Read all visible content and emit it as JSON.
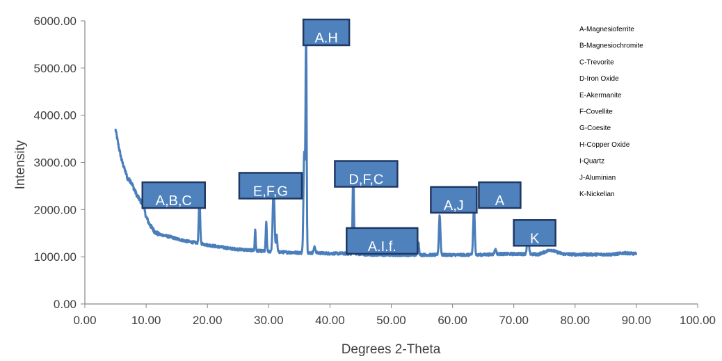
{
  "chart_data": {
    "type": "line",
    "xlabel": "Degrees 2-Theta",
    "ylabel": "Intensity",
    "xlim": [
      0,
      100
    ],
    "ylim": [
      0,
      6000
    ],
    "x_ticks": [
      "0.00",
      "10.00",
      "20.00",
      "30.00",
      "40.00",
      "50.00",
      "60.00",
      "70.00",
      "80.00",
      "90.00",
      "100.00"
    ],
    "y_ticks": [
      "0.00",
      "1000.00",
      "2000.00",
      "3000.00",
      "4000.00",
      "5000.00",
      "6000.00"
    ],
    "grid": false,
    "legend_position": "top-right",
    "line_color": "#4a7ebb",
    "box_fill": "#4f81bd",
    "box_border": "#1f3864",
    "baseline": [
      [
        5,
        3700
      ],
      [
        5.5,
        3350
      ],
      [
        6,
        3050
      ],
      [
        6.5,
        2850
      ],
      [
        7,
        2650
      ],
      [
        7.5,
        2600
      ],
      [
        8,
        2450
      ],
      [
        8.5,
        2300
      ],
      [
        9,
        2200
      ],
      [
        9.5,
        2100
      ],
      [
        10,
        1850
      ],
      [
        10.5,
        1700
      ],
      [
        11,
        1600
      ],
      [
        11.5,
        1520
      ],
      [
        12,
        1480
      ],
      [
        13,
        1450
      ],
      [
        14,
        1420
      ],
      [
        15,
        1380
      ],
      [
        16,
        1350
      ],
      [
        17,
        1320
      ],
      [
        18,
        1300
      ],
      [
        19,
        1280
      ],
      [
        20,
        1250
      ],
      [
        21,
        1230
      ],
      [
        22,
        1210
      ],
      [
        23,
        1190
      ],
      [
        24,
        1170
      ],
      [
        25,
        1160
      ],
      [
        26,
        1150
      ],
      [
        27,
        1140
      ],
      [
        28,
        1130
      ],
      [
        29,
        1120
      ],
      [
        30,
        1110
      ],
      [
        32,
        1100
      ],
      [
        34,
        1090
      ],
      [
        36,
        1080
      ],
      [
        38,
        1080
      ],
      [
        40,
        1070
      ],
      [
        42,
        1070
      ],
      [
        44,
        1060
      ],
      [
        46,
        1050
      ],
      [
        48,
        1040
      ],
      [
        50,
        1040
      ],
      [
        52,
        1040
      ],
      [
        54,
        1040
      ],
      [
        56,
        1040
      ],
      [
        58,
        1040
      ],
      [
        60,
        1040
      ],
      [
        62,
        1040
      ],
      [
        64,
        1040
      ],
      [
        66,
        1050
      ],
      [
        68,
        1060
      ],
      [
        70,
        1060
      ],
      [
        72,
        1060
      ],
      [
        74,
        1050
      ],
      [
        76,
        1150
      ],
      [
        77,
        1100
      ],
      [
        78,
        1060
      ],
      [
        80,
        1050
      ],
      [
        82,
        1050
      ],
      [
        84,
        1050
      ],
      [
        86,
        1050
      ],
      [
        88,
        1080
      ],
      [
        90,
        1060
      ]
    ],
    "peaks": [
      {
        "x": 18.7,
        "y": 2280,
        "w": 0.22
      },
      {
        "x": 27.8,
        "y": 1580,
        "w": 0.15
      },
      {
        "x": 29.6,
        "y": 1720,
        "w": 0.18
      },
      {
        "x": 30.8,
        "y": 2400,
        "w": 0.3
      },
      {
        "x": 31.3,
        "y": 1450,
        "w": 0.2
      },
      {
        "x": 35.8,
        "y": 3200,
        "w": 0.25
      },
      {
        "x": 36.1,
        "y": 5750,
        "w": 0.18
      },
      {
        "x": 37.5,
        "y": 1200,
        "w": 0.3
      },
      {
        "x": 43.8,
        "y": 2780,
        "w": 0.22
      },
      {
        "x": 54.4,
        "y": 1330,
        "w": 0.25
      },
      {
        "x": 57.9,
        "y": 1880,
        "w": 0.25
      },
      {
        "x": 63.5,
        "y": 2080,
        "w": 0.25
      },
      {
        "x": 67.0,
        "y": 1150,
        "w": 0.3
      },
      {
        "x": 72.3,
        "y": 1420,
        "w": 0.3
      }
    ],
    "annotations": [
      {
        "label": "A,B,C",
        "x": 14.5,
        "y": 2550
      },
      {
        "label": "E,F,G",
        "x": 30.3,
        "y": 2750
      },
      {
        "label": "A.H",
        "x": 39.4,
        "y": 6000
      },
      {
        "label": "D,F,C",
        "x": 45.9,
        "y": 3000
      },
      {
        "label": "A.I.f.",
        "x": 48.5,
        "y": 1580
      },
      {
        "label": "A,J",
        "x": 60.2,
        "y": 2450
      },
      {
        "label": "A",
        "x": 67.7,
        "y": 2550
      },
      {
        "label": "K",
        "x": 73.4,
        "y": 1750
      }
    ],
    "legend": [
      "A-Magnesioferrite",
      "B-Magnesiochromite",
      "C-Trevorite",
      "D-Iron Oxide",
      "E-Akermanite",
      "F-Covellite",
      "G-Coesite",
      "H-Copper Oxide",
      "I-Quartz",
      "J-Aluminian",
      "K-Nickelian"
    ]
  }
}
